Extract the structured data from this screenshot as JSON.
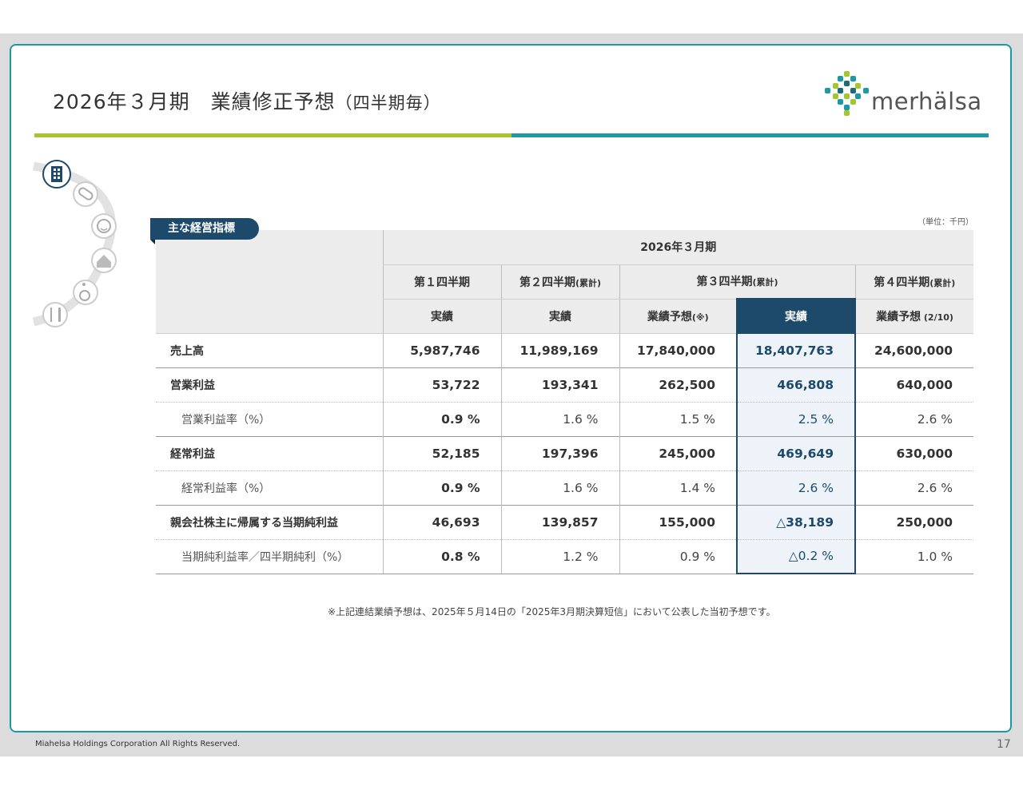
{
  "header": {
    "title": "2026年３月期　業績修正予想",
    "title_sub": "（四半期毎）",
    "logo_text": "merhälsa"
  },
  "colors": {
    "green": "#a7c62e",
    "teal": "#1b9aa5",
    "navy": "#1d4a6b"
  },
  "side_icons": [
    "building-icon",
    "pill-icon",
    "face-icon",
    "home-icon",
    "wheelchair-icon",
    "cutlery-icon"
  ],
  "section_tag": "主な経営指標",
  "unit": "（単位：千円）",
  "table": {
    "period": "2026年３月期",
    "quarters": [
      {
        "label": "第１四半期",
        "note": ""
      },
      {
        "label": "第２四半期",
        "note": "(累計)"
      },
      {
        "label": "第３四半期",
        "note": "(累計)"
      },
      {
        "label": "第４四半期",
        "note": "(累計)"
      }
    ],
    "subheads": [
      {
        "label": "実績",
        "note": ""
      },
      {
        "label": "実績",
        "note": ""
      },
      {
        "label": "業績予想",
        "note": "(※)"
      },
      {
        "label": "実績",
        "note": ""
      },
      {
        "label": "業績予想",
        "note": " (2/10)"
      }
    ],
    "rows": [
      {
        "label": "売上高",
        "values": [
          "5,987,746",
          "11,989,169",
          "17,840,000",
          "18,407,763",
          "24,600,000"
        ]
      },
      {
        "label": "営業利益",
        "values": [
          "53,722",
          "193,341",
          "262,500",
          "466,808",
          "640,000"
        ]
      },
      {
        "label": "営業利益率（%）",
        "values": [
          "0.9 %",
          "1.6 %",
          "1.5 %",
          "2.5 %",
          "2.6 %"
        ]
      },
      {
        "label": "経常利益",
        "values": [
          "52,185",
          "197,396",
          "245,000",
          "469,649",
          "630,000"
        ]
      },
      {
        "label": "経常利益率（%）",
        "values": [
          "0.9 %",
          "1.6 %",
          "1.4 %",
          "2.6 %",
          "2.6 %"
        ]
      },
      {
        "label": "親会社株主に帰属する当期純利益",
        "values": [
          "46,693",
          "139,857",
          "155,000",
          "△38,189",
          "250,000"
        ]
      },
      {
        "label": "当期純利益率／四半期純利（%）",
        "values": [
          "0.8 %",
          "1.2 %",
          "0.9 %",
          "△0.2 %",
          "1.0 %"
        ]
      }
    ]
  },
  "note": "※上記連結業績予想は、2025年５月14日の「2025年3月期決算短信」において公表した当初予想です。",
  "footer": {
    "copyright": "Miahelsa Holdings Corporation All Rights Reserved.",
    "page": "17"
  }
}
